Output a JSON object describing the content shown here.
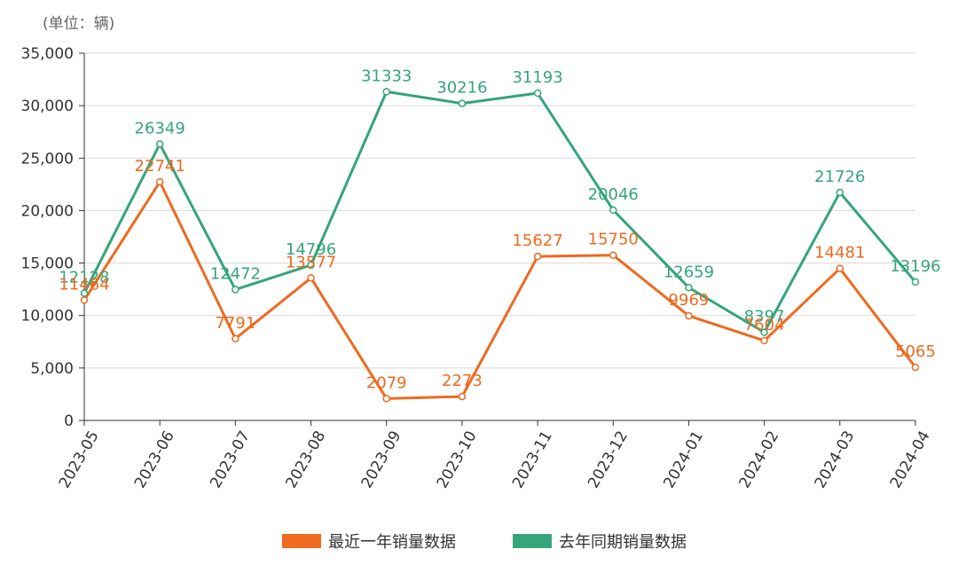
{
  "chart_data": {
    "type": "line",
    "unit_label": "(单位：辆)",
    "categories": [
      "2023-05",
      "2023-06",
      "2023-07",
      "2023-08",
      "2023-09",
      "2023-10",
      "2023-11",
      "2023-12",
      "2024-01",
      "2024-02",
      "2024-03",
      "2024-04"
    ],
    "series": [
      {
        "name": "最近一年销量数据",
        "color": "#ee6a1f",
        "values": [
          11464,
          22741,
          7791,
          13577,
          2079,
          2273,
          15627,
          15750,
          9969,
          7604,
          14481,
          5065
        ]
      },
      {
        "name": "去年同期销量数据",
        "color": "#35a57b",
        "values": [
          12128,
          26349,
          12472,
          14796,
          31333,
          30216,
          31193,
          20046,
          12659,
          8397,
          21726,
          13196
        ]
      }
    ],
    "yticks": [
      0,
      5000,
      10000,
      15000,
      20000,
      25000,
      30000,
      35000
    ],
    "ytick_labels": [
      "0",
      "5,000",
      "10,000",
      "15,000",
      "20,000",
      "25,000",
      "30,000",
      "35,000"
    ],
    "ylim": [
      0,
      35000
    ],
    "grid": true,
    "legend_position": "bottom"
  }
}
